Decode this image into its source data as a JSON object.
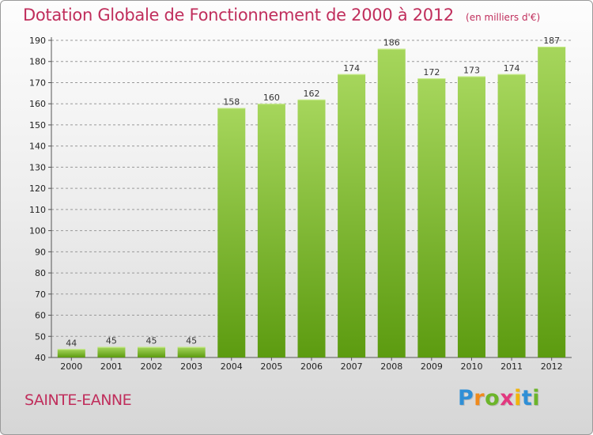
{
  "title": "Dotation Globale de Fonctionnement de 2000 à 2012",
  "unit_note": "(en milliers d'€)",
  "city": "SAINTE-EANNE",
  "logo": {
    "letters": [
      "P",
      "r",
      "o",
      "x",
      "i",
      "t",
      "i"
    ],
    "colors": {
      "blue": "#2f8fd6",
      "orange": "#f08a1c",
      "green": "#6cb52a",
      "pink": "#e2387f",
      "yellow": "#f2b40c"
    }
  },
  "colors": {
    "title": "#c02e5c",
    "bar_light": "#9fd155",
    "bar_dark": "#5e9e12",
    "grid": "#999999"
  },
  "chart_data": {
    "type": "bar",
    "title": "Dotation Globale de Fonctionnement de 2000 à 2012",
    "subtitle": "(en milliers d'€)",
    "categories": [
      "2000",
      "2001",
      "2002",
      "2003",
      "2004",
      "2005",
      "2006",
      "2007",
      "2008",
      "2009",
      "2010",
      "2011",
      "2012"
    ],
    "values": [
      44,
      45,
      45,
      45,
      158,
      160,
      162,
      174,
      186,
      172,
      173,
      174,
      187
    ],
    "xlabel": "",
    "ylabel": "",
    "ylim": [
      40,
      190
    ],
    "yticks": [
      40,
      50,
      60,
      70,
      80,
      90,
      100,
      110,
      120,
      130,
      140,
      150,
      160,
      170,
      180,
      190
    ],
    "grid": true,
    "grid_style": "dashed horizontal",
    "legend": "none"
  }
}
